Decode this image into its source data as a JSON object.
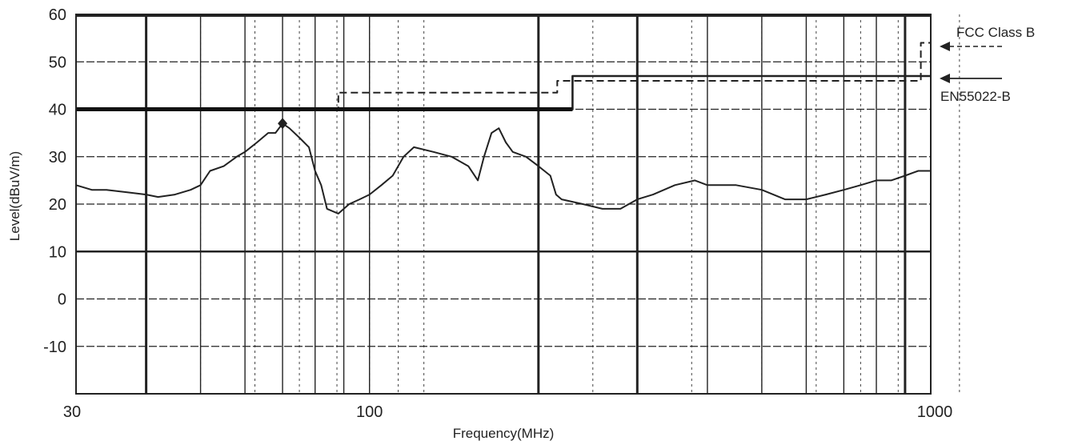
{
  "chart_data": {
    "type": "line",
    "title": "",
    "xlabel": "Frequency(MHz)",
    "ylabel": "Level(dBuV/m)",
    "xscale": "log",
    "xlim": [
      30,
      1000
    ],
    "ylim": [
      -20,
      60
    ],
    "grid": true,
    "x_tick_labels": [
      {
        "value": 30,
        "label": "30"
      },
      {
        "value": 100,
        "label": "100"
      },
      {
        "value": 1000,
        "label": "1000"
      }
    ],
    "y_tick_labels": [
      {
        "value": 60,
        "label": "60"
      },
      {
        "value": 50,
        "label": "50"
      },
      {
        "value": 40,
        "label": "40"
      },
      {
        "value": 30,
        "label": "30"
      },
      {
        "value": 20,
        "label": "20"
      },
      {
        "value": 10,
        "label": "10"
      },
      {
        "value": 0,
        "label": "0"
      },
      {
        "value": -10,
        "label": "-10"
      }
    ],
    "legend_placement": "right",
    "series": [
      {
        "name": "FCC Class B",
        "style": "dashed",
        "color": "#222222",
        "points": [
          [
            30,
            40
          ],
          [
            88,
            40
          ],
          [
            88,
            43.5
          ],
          [
            216,
            43.5
          ],
          [
            216,
            46
          ],
          [
            960,
            46
          ],
          [
            960,
            54
          ],
          [
            1000,
            54
          ]
        ]
      },
      {
        "name": "EN55022-B",
        "style": "solid",
        "color": "#222222",
        "points": [
          [
            30,
            40
          ],
          [
            230,
            40
          ],
          [
            230,
            47
          ],
          [
            1000,
            47
          ]
        ]
      },
      {
        "name": "",
        "style": "solid",
        "color": "#222222",
        "points": [
          [
            30,
            24
          ],
          [
            32,
            23
          ],
          [
            34,
            23
          ],
          [
            37,
            22.5
          ],
          [
            40,
            22
          ],
          [
            42,
            21.5
          ],
          [
            45,
            22
          ],
          [
            48,
            23
          ],
          [
            50,
            24
          ],
          [
            52,
            27
          ],
          [
            55,
            28
          ],
          [
            58,
            30
          ],
          [
            60,
            31
          ],
          [
            63,
            33
          ],
          [
            66,
            35
          ],
          [
            68,
            35
          ],
          [
            70,
            37
          ],
          [
            72,
            36
          ],
          [
            75,
            34
          ],
          [
            78,
            32
          ],
          [
            80,
            27
          ],
          [
            82,
            24
          ],
          [
            84,
            19
          ],
          [
            88,
            18
          ],
          [
            92,
            20
          ],
          [
            96,
            21
          ],
          [
            100,
            22
          ],
          [
            105,
            24
          ],
          [
            110,
            26
          ],
          [
            115,
            30
          ],
          [
            120,
            32
          ],
          [
            130,
            31
          ],
          [
            140,
            30
          ],
          [
            150,
            28
          ],
          [
            156,
            25
          ],
          [
            160,
            30
          ],
          [
            165,
            35
          ],
          [
            170,
            36
          ],
          [
            175,
            33
          ],
          [
            180,
            31
          ],
          [
            190,
            30
          ],
          [
            200,
            28
          ],
          [
            210,
            26
          ],
          [
            215,
            22
          ],
          [
            220,
            21
          ],
          [
            240,
            20
          ],
          [
            260,
            19
          ],
          [
            280,
            19
          ],
          [
            300,
            21
          ],
          [
            320,
            22
          ],
          [
            350,
            24
          ],
          [
            380,
            25
          ],
          [
            400,
            24
          ],
          [
            450,
            24
          ],
          [
            500,
            23
          ],
          [
            550,
            21
          ],
          [
            600,
            21
          ],
          [
            650,
            22
          ],
          [
            700,
            23
          ],
          [
            750,
            24
          ],
          [
            800,
            25
          ],
          [
            850,
            25
          ],
          [
            900,
            26
          ],
          [
            950,
            27
          ],
          [
            1000,
            27
          ]
        ]
      }
    ]
  }
}
